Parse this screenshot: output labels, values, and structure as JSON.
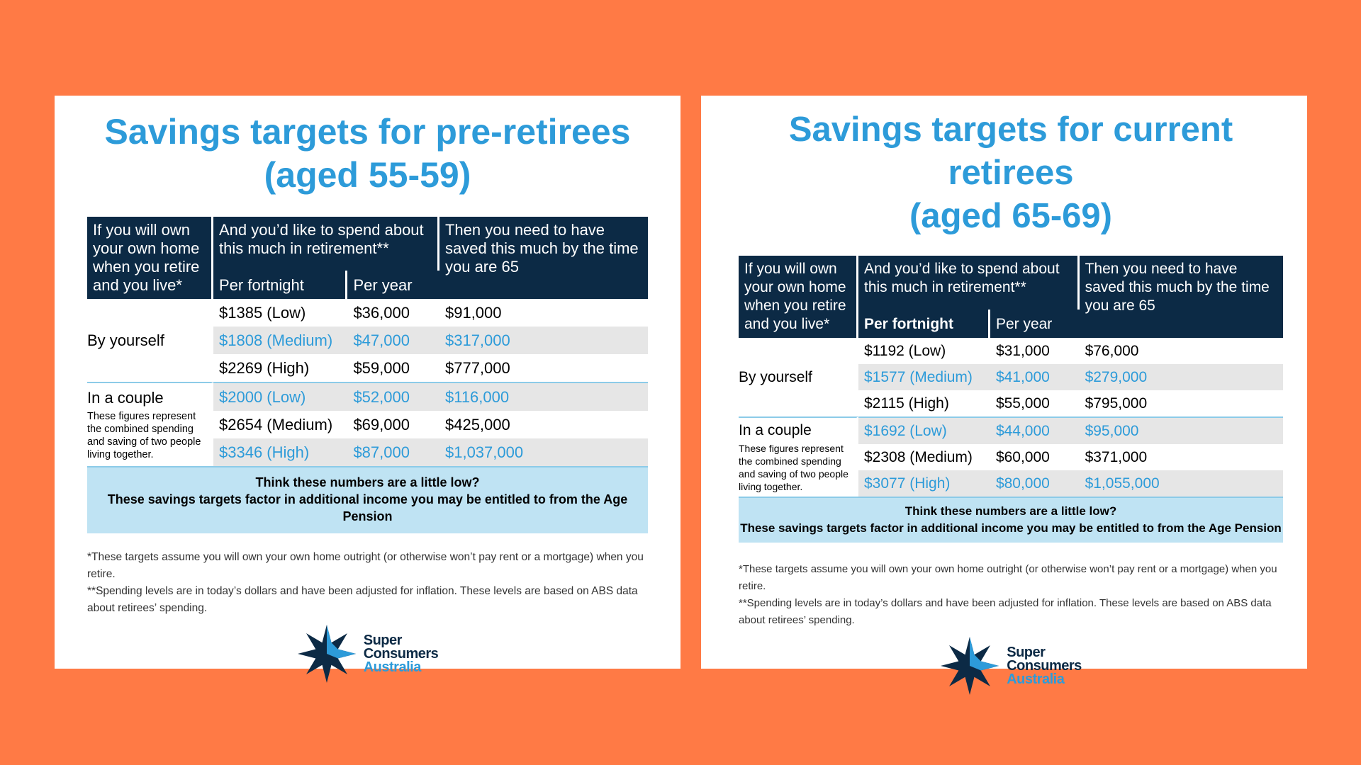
{
  "panels": [
    {
      "title_line1": "Savings targets for pre-retirees",
      "title_line2": "(aged 55-59)",
      "table": {
        "header": {
          "col1": "If you will own your own home when you retire and you live*",
          "col2": "And you’d like to spend about this much in retirement**",
          "per_fortnight": "Per fortnight",
          "per_year": "Per year",
          "col3": "Then you need to have saved this much by the time you are 65"
        },
        "groups": [
          {
            "label": "By yourself",
            "rows": [
              [
                "$1385 (Low)",
                "$36,000",
                "$91,000"
              ],
              [
                "$1808 (Medium)",
                "$47,000",
                "$317,000"
              ],
              [
                "$2269 (High)",
                "$59,000",
                "$777,000"
              ]
            ]
          },
          {
            "label": "In a couple",
            "note": "These figures represent the combined spending and saving of two people living together.",
            "rows": [
              [
                "$2000 (Low)",
                "$52,000",
                "$116,000"
              ],
              [
                "$2654 (Medium)",
                "$69,000",
                "$425,000"
              ],
              [
                "$3346 (High)",
                "$87,000",
                "$1,037,000"
              ]
            ]
          }
        ]
      },
      "callout": {
        "line1": "Think these numbers are a little low?",
        "line2": "These savings targets factor in additional income you may be entitled to from the Age Pension"
      },
      "footnotes": [
        "*These targets assume you will own your own home outright (or otherwise won’t pay rent or a mortgage) when you retire.",
        "**Spending levels are in today’s dollars and have been adjusted for inflation. These levels are based on ABS data about retirees’ spending."
      ]
    },
    {
      "title_line1": "Savings targets for current retirees",
      "title_line2": "(aged 65-69)",
      "table": {
        "header": {
          "col1": "If you will own your own home when you retire and you live*",
          "col2": "And you’d like to spend about this much in retirement**",
          "per_fortnight": "Per fortnight",
          "per_year": "Per year",
          "col3": "Then you need to have saved this much by the time you are 65"
        },
        "groups": [
          {
            "label": "By yourself",
            "rows": [
              [
                "$1192 (Low)",
                "$31,000",
                "$76,000"
              ],
              [
                "$1577 (Medium)",
                "$41,000",
                "$279,000"
              ],
              [
                "$2115 (High)",
                "$55,000",
                "$795,000"
              ]
            ]
          },
          {
            "label": "In a couple",
            "note": "These figures represent the combined spending and saving of two people living together.",
            "rows": [
              [
                "$1692 (Low)",
                "$44,000",
                "$95,000"
              ],
              [
                "$2308 (Medium)",
                "$60,000",
                "$371,000"
              ],
              [
                "$3077 (High)",
                "$80,000",
                "$1,055,000"
              ]
            ]
          }
        ]
      },
      "callout": {
        "line1": "Think these numbers are a little low?",
        "line2": "These savings targets factor in additional income you may be entitled to from the Age Pension"
      },
      "footnotes": [
        "*These targets assume you will own your own home outright (or otherwise won’t pay rent or a mortgage) when you retire.",
        "**Spending levels are in today’s dollars and have been adjusted for inflation. These levels are based on ABS data about retirees’ spending."
      ]
    }
  ],
  "logo": {
    "line1": "Super",
    "line2": "Consumers",
    "line3": "Australia"
  }
}
